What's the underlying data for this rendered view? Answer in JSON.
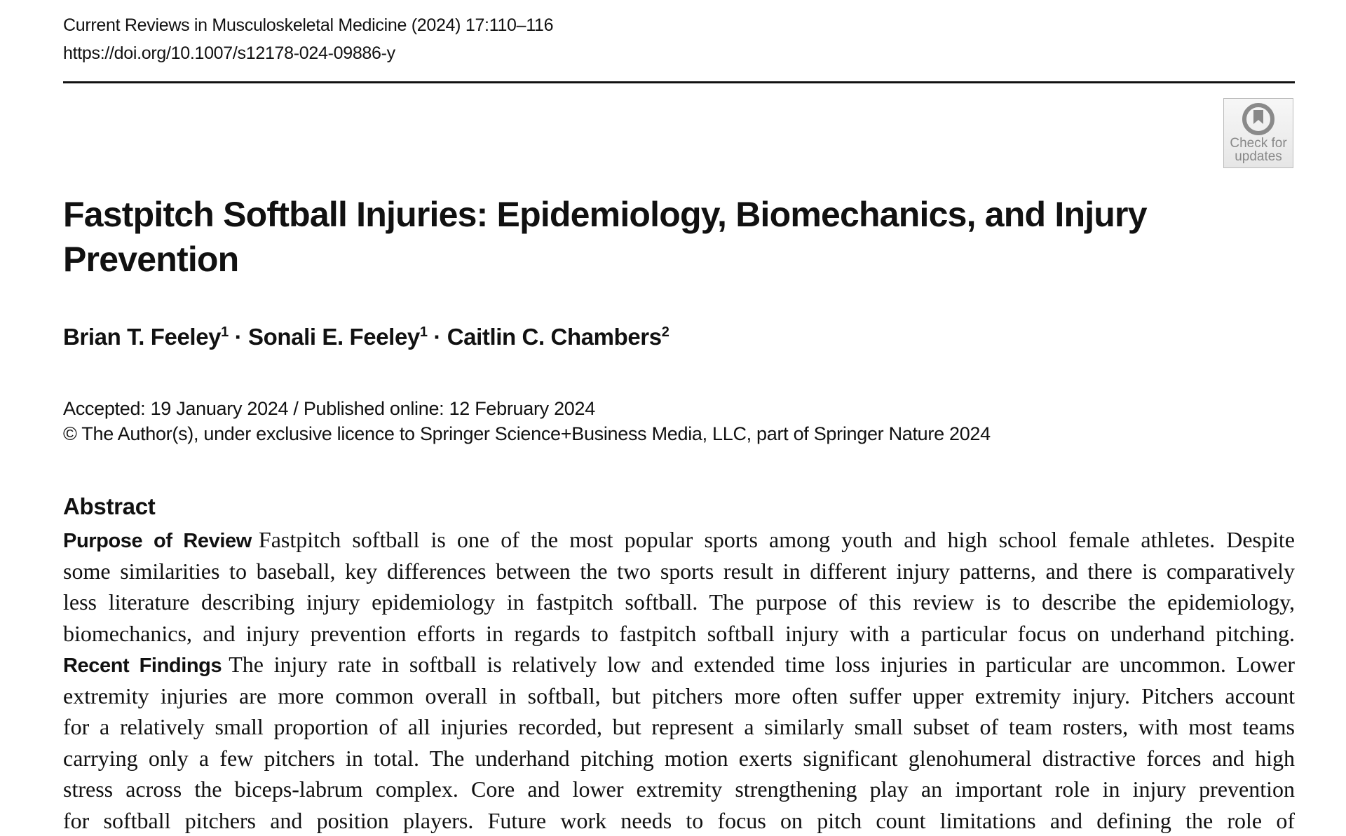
{
  "header": {
    "journal": "Current Reviews in Musculoskeletal Medicine (2024) 17:110–116",
    "doi": "https://doi.org/10.1007/s12178-024-09886-y"
  },
  "badge": {
    "line1": "Check for",
    "line2": "updates"
  },
  "title": {
    "line1": "Fastpitch Softball Injuries: Epidemiology, Biomechanics, and Injury",
    "line2": "Prevention"
  },
  "authors": [
    {
      "name": "Brian T. Feeley",
      "aff": "1"
    },
    {
      "name": "Sonali E. Feeley",
      "aff": "1"
    },
    {
      "name": "Caitlin C. Chambers",
      "aff": "2"
    }
  ],
  "author_sep": " · ",
  "dates": "Accepted: 19 January 2024 / Published online: 12 February 2024",
  "copyright": "© The Author(s), under exclusive licence to Springer Science+Business Media, LLC, part of Springer Nature 2024",
  "abstract": {
    "heading": "Abstract",
    "purpose_label": "Purpose of Review",
    "findings_label": "Recent Findings",
    "lines": [
      "Fastpitch softball is one of the most popular sports among youth and high school female athletes. Despite",
      "some similarities to baseball, key differences between the two sports result in different injury patterns, and there is comparatively",
      "less literature describing injury epidemiology in fastpitch softball. The purpose of this review is to describe the epidemiology,",
      "biomechanics, and injury prevention efforts in regards to fastpitch softball injury with a particular focus on underhand pitching.",
      "The injury rate in softball is relatively low and extended time loss injuries in particular are uncommon. Lower",
      "extremity injuries are more common overall in softball, but pitchers more often suffer upper extremity injury. Pitchers account",
      "for a relatively small proportion of all injuries recorded, but represent a similarly small subset of team rosters, with most teams",
      "carrying only a few pitchers in total. The underhand pitching motion exerts significant glenohumeral distractive forces and high",
      "stress across the biceps-labrum complex. Core and lower extremity strengthening play an important role in injury prevention",
      "for softball pitchers and position players. Future work needs to focus on pitch count limitations and defining the role of"
    ]
  }
}
